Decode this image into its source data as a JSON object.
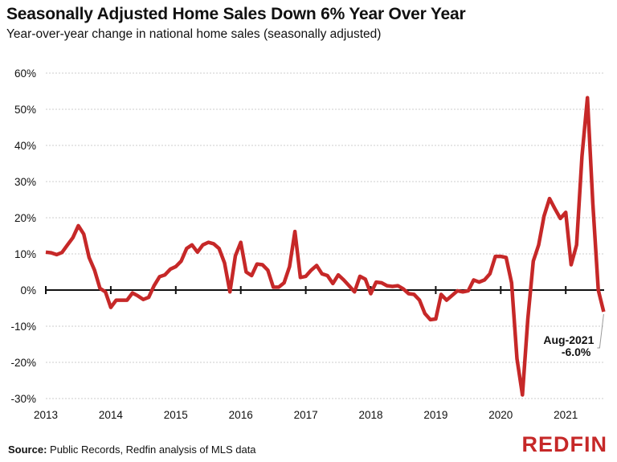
{
  "title": "Seasonally Adjusted Home Sales Down 6% Year Over Year",
  "subtitle": "Year-over-year change in national home sales (seasonally adjusted)",
  "source_label": "Source:",
  "source_text": " Public Records, Redfin analysis of MLS data",
  "logo": "REDFIN",
  "colors": {
    "line": "#c62828",
    "axis": "#111111",
    "grid": "#cccccc"
  },
  "chart_data": {
    "type": "line",
    "title": "Seasonally Adjusted Home Sales Down 6% Year Over Year",
    "subtitle": "Year-over-year change in national home sales (seasonally adjusted)",
    "x_start": "2013-01",
    "x_end": "2021-08",
    "frequency": "monthly",
    "ylim": [
      -30,
      60
    ],
    "y_ticks": [
      "60%",
      "50%",
      "40%",
      "30%",
      "20%",
      "10%",
      "0%",
      "-10%",
      "-20%",
      "-30%"
    ],
    "y_tick_values": [
      60,
      50,
      40,
      30,
      20,
      10,
      0,
      -10,
      -20,
      -30
    ],
    "x_ticks": [
      "2013",
      "2014",
      "2015",
      "2016",
      "2017",
      "2018",
      "2019",
      "2020",
      "2021"
    ],
    "grid": "horizontal dotted",
    "series": [
      {
        "values": [
          10.5,
          10.3,
          9.8,
          10.4,
          12.5,
          14.5,
          17.8,
          15.5,
          9,
          5.5,
          0.5,
          -0.5,
          -4.8,
          -2.8,
          -2.8,
          -2.8,
          -0.8,
          -1.6,
          -2.6,
          -2.0,
          1.2,
          3.7,
          4.2,
          5.8,
          6.5,
          8,
          11.5,
          12.5,
          10.5,
          12.5,
          13.2,
          12.8,
          11.5,
          7.5,
          -0.5,
          9.5,
          13.2,
          5,
          4,
          7.2,
          7,
          5.5,
          0.8,
          0.8,
          2,
          6.5,
          16.2,
          3.5,
          3.8,
          5.5,
          6.8,
          4.5,
          4,
          1.8,
          4.2,
          2.8,
          1.2,
          -0.5,
          3.8,
          3.0,
          -1,
          2.2,
          2,
          1.2,
          1,
          1.2,
          0.3,
          -1,
          -1.2,
          -2.8,
          -6.5,
          -8.2,
          -8,
          -1.2,
          -2.8,
          -1.5,
          -0.2,
          -0.5,
          -0.2,
          2.8,
          2.2,
          2.8,
          4.5,
          9.3,
          9.3,
          9,
          2,
          -19,
          -29,
          -8,
          8,
          12.5,
          20.5,
          25.3,
          22.5,
          19.8,
          21.5,
          7,
          12.5,
          37,
          53.2,
          24,
          0,
          -6.0
        ]
      }
    ],
    "annotation": {
      "label": "Aug-2021",
      "value": "-6.0%"
    }
  }
}
